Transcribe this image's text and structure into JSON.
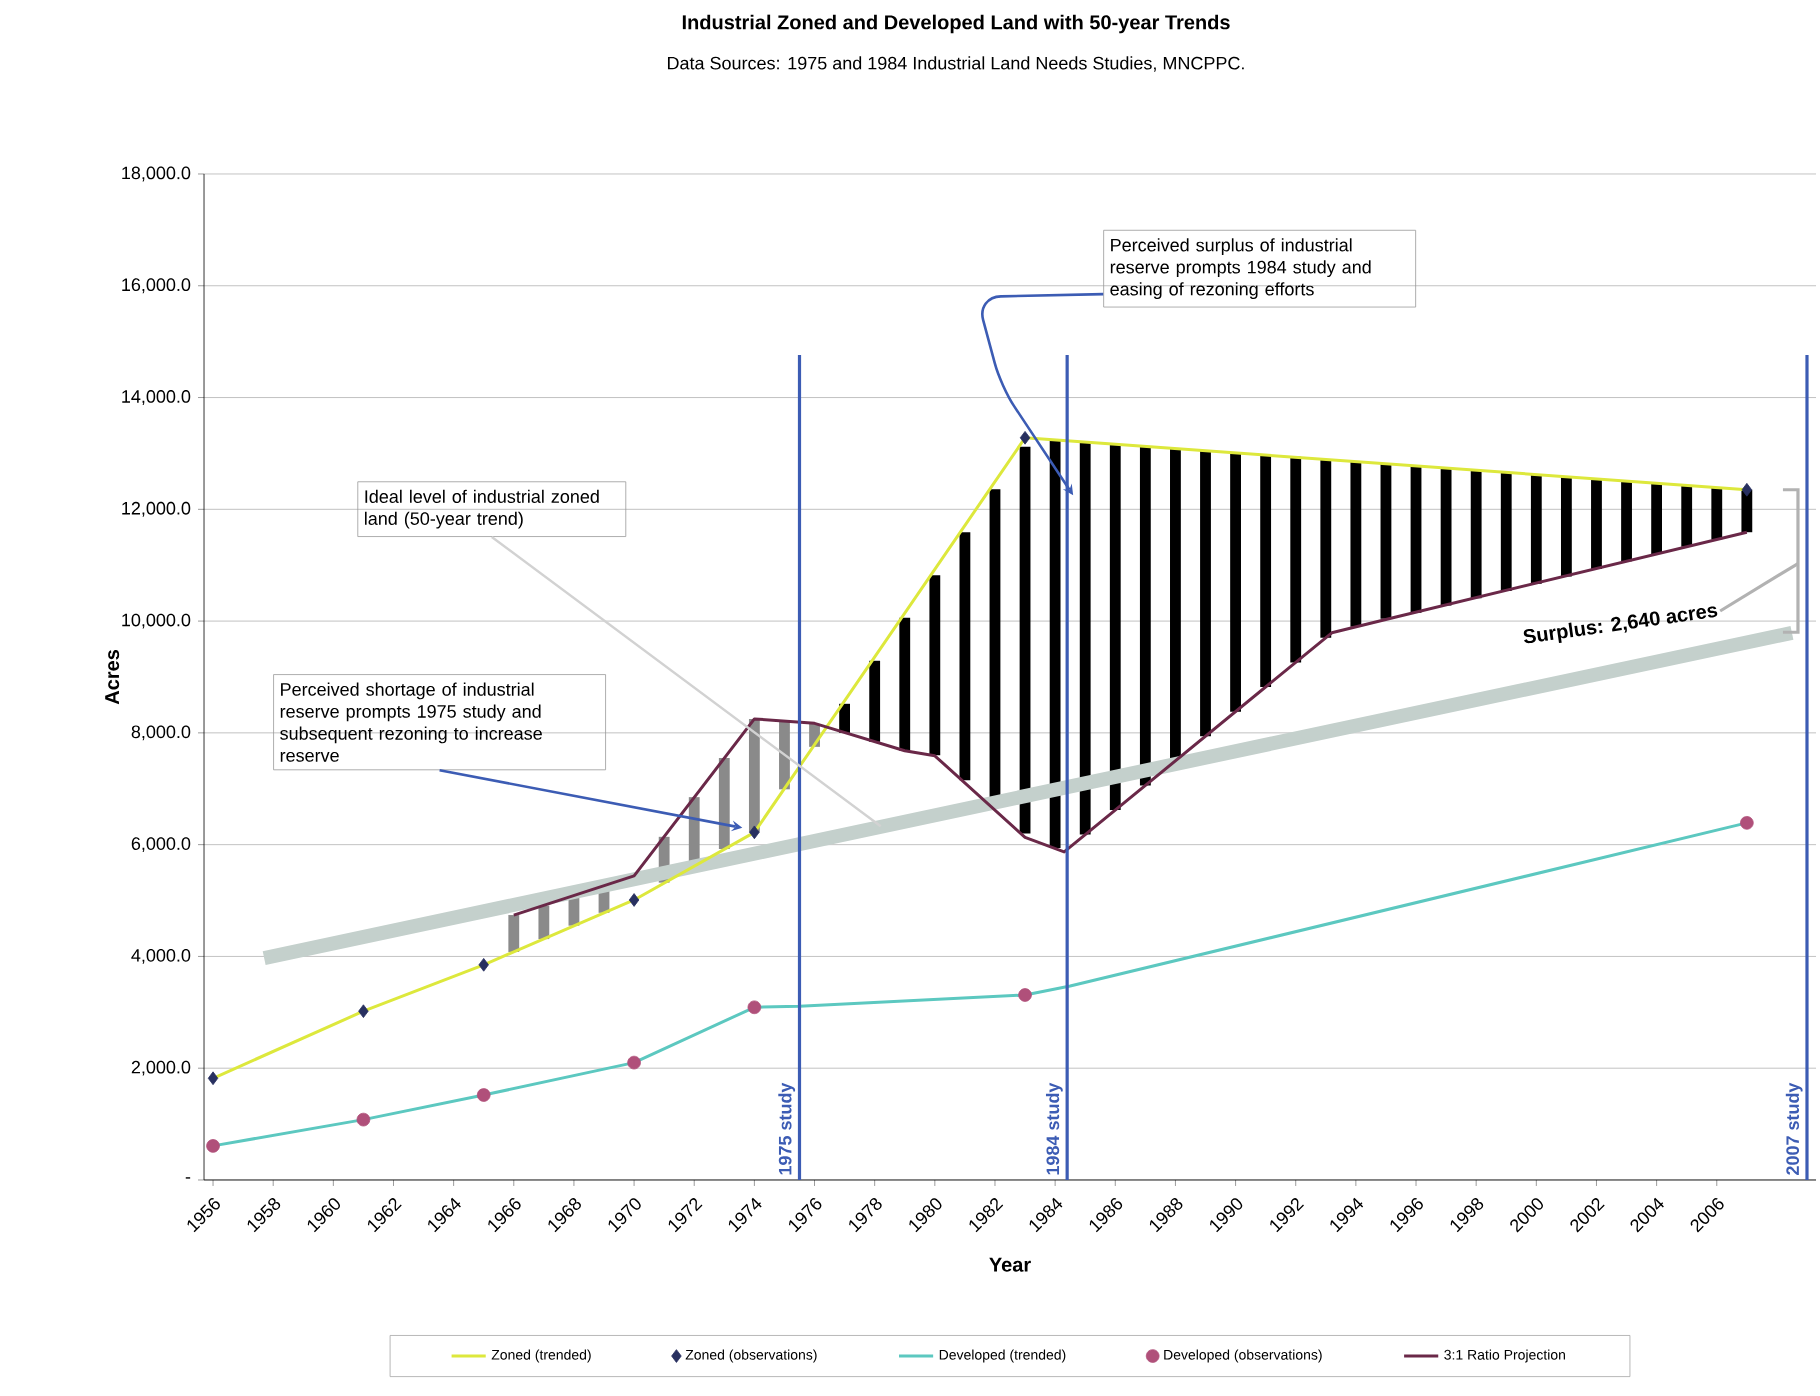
{
  "chart_data": {
    "type": "line",
    "title": "Industrial Zoned and Developed Land with 50-year Trends",
    "subtitle": "Data Sources:  1975 and 1984 Industrial Land Needs Studies, MNCPPC.",
    "xlabel": "Year",
    "ylabel": "Acres",
    "xlim": [
      1955.7,
      2009.3
    ],
    "xticks": [
      1956,
      1958,
      1960,
      1962,
      1964,
      1966,
      1968,
      1970,
      1972,
      1974,
      1976,
      1978,
      1980,
      1982,
      1984,
      1986,
      1988,
      1990,
      1992,
      1994,
      1996,
      1998,
      2000,
      2002,
      2004,
      2006
    ],
    "ylim": [
      0,
      18000
    ],
    "yticks": [
      {
        "value": 0,
        "label": "-"
      },
      {
        "value": 2000,
        "label": "2,000.0"
      },
      {
        "value": 4000,
        "label": "4,000.0"
      },
      {
        "value": 6000,
        "label": "6,000.0"
      },
      {
        "value": 8000,
        "label": "8,000.0"
      },
      {
        "value": 10000,
        "label": "10,000.0"
      },
      {
        "value": 12000,
        "label": "12,000.0"
      },
      {
        "value": 14000,
        "label": "14,000.0"
      },
      {
        "value": 16000,
        "label": "16,000.0"
      },
      {
        "value": 18000,
        "label": "18,000.0"
      }
    ],
    "grid": "y",
    "legend": "bottom",
    "series": [
      {
        "name": "Zoned (trended)",
        "color": "#dde83c",
        "x": [
          1956,
          1961,
          1965,
          1970,
          1974,
          1983,
          2007
        ],
        "values": [
          1820,
          3020,
          3850,
          5010,
          6220,
          13280,
          12350
        ]
      },
      {
        "name": "Zoned (observations)",
        "type": "scatter",
        "marker": "diamond",
        "color": "#283060",
        "x": [
          1956,
          1961,
          1965,
          1970,
          1974,
          1983,
          2007
        ],
        "values": [
          1820,
          3020,
          3850,
          5010,
          6220,
          13280,
          12350
        ]
      },
      {
        "name": "Developed (trended)",
        "color": "#5cc8c0",
        "x": [
          1956,
          1961,
          1965,
          1970,
          1974,
          1975.5,
          1983,
          1984.5,
          2007
        ],
        "values": [
          610,
          1080,
          1520,
          2100,
          3090,
          3110,
          3310,
          3470,
          6390
        ]
      },
      {
        "name": "Developed (observations)",
        "type": "scatter",
        "marker": "circle",
        "color": "#b0507a",
        "x": [
          1956,
          1961,
          1965,
          1970,
          1974,
          1983,
          2007
        ],
        "values": [
          610,
          1080,
          1520,
          2100,
          3090,
          3310,
          6390
        ]
      },
      {
        "name": "3:1 Ratio Projection",
        "color": "#6a2848",
        "x": [
          1966,
          1970,
          1974,
          1976,
          1979,
          1980,
          1983,
          1984.3,
          1993.2,
          1995.3,
          2007
        ],
        "values": [
          4740,
          5440,
          8250,
          8170,
          7680,
          7590,
          6130,
          5870,
          9790,
          10070,
          11590
        ]
      },
      {
        "type": "bar",
        "x": [
          1966,
          1967,
          1968,
          1969,
          1971,
          1972,
          1973,
          1974,
          1975,
          1976,
          1977,
          1978,
          1979,
          1980,
          1981,
          1982,
          1983,
          1984,
          1985,
          1986,
          1987,
          1988,
          1989,
          1990,
          1991,
          1992,
          1993,
          1994,
          1995,
          1996,
          1997,
          1998,
          1999,
          2000,
          2001,
          2002,
          2003,
          2004,
          2005,
          2006,
          2007
        ],
        "base": [
          4080,
          4310,
          4550,
          4780,
          5320,
          5620,
          5920,
          6220,
          6990,
          7750,
          8000,
          7840,
          7680,
          7600,
          7150,
          6700,
          6200,
          5940,
          6180,
          6620,
          7060,
          7500,
          7940,
          8380,
          8820,
          9260,
          9700,
          9900,
          10040,
          10150,
          10280,
          10410,
          10540,
          10670,
          10800,
          10930,
          11070,
          11200,
          11330,
          11460,
          11590
        ],
        "values": [
          660,
          600,
          540,
          480,
          820,
          1230,
          1630,
          2030,
          1220,
          410,
          520,
          1450,
          2380,
          3220,
          4440,
          5660,
          6920,
          7310,
          7030,
          6550,
          6070,
          5590,
          5110,
          4630,
          4150,
          3680,
          3200,
          2960,
          2780,
          2630,
          2460,
          2290,
          2120,
          1950,
          1780,
          1620,
          1440,
          1270,
          1100,
          930,
          760
        ],
        "colors": [
          "#8a8a8a",
          "#8a8a8a",
          "#8a8a8a",
          "#8a8a8a",
          "#8a8a8a",
          "#8a8a8a",
          "#8a8a8a",
          "#8a8a8a",
          "#8a8a8a",
          "#8a8a8a",
          "#000000",
          "#000000",
          "#000000",
          "#000000",
          "#000000",
          "#000000",
          "#000000",
          "#000000",
          "#000000",
          "#000000",
          "#000000",
          "#000000",
          "#000000",
          "#000000",
          "#000000",
          "#000000",
          "#000000",
          "#000000",
          "#000000",
          "#000000",
          "#000000",
          "#000000",
          "#000000",
          "#000000",
          "#000000",
          "#000000",
          "#000000",
          "#000000",
          "#000000",
          "#000000",
          "#000000"
        ]
      },
      {
        "color": "#c4d0cc",
        "x": [
          1957.7,
          2008.5
        ],
        "values": [
          3970,
          9790
        ]
      }
    ],
    "ref_lines": [
      {
        "axis": "x",
        "value": 1975.5,
        "label": "1975 study",
        "color": "#3c5cb4"
      },
      {
        "axis": "x",
        "value": 1984.4,
        "label": "1984 study",
        "color": "#3c5cb4"
      },
      {
        "axis": "x",
        "value": 2009.0,
        "label": "2007 study",
        "color": "#3c5cb4"
      }
    ],
    "annotations": [
      {
        "text": "Ideal level of industrial zoned land (50-year trend)",
        "x": 1978.2,
        "y": 6330
      },
      {
        "text": "Perceived shortage of industrial reserve prompts 1975 study and subsequent rezoning to increase reserve",
        "x": 1973.6,
        "y": 6300
      },
      {
        "text": "Perceived surplus of industrial reserve prompts 1984 study and easing of rezoning efforts",
        "x": 1984.6,
        "y": 12250
      },
      {
        "text": "Surplus: 2,640 acres",
        "x": 2008.7,
        "y": 11030
      }
    ]
  }
}
